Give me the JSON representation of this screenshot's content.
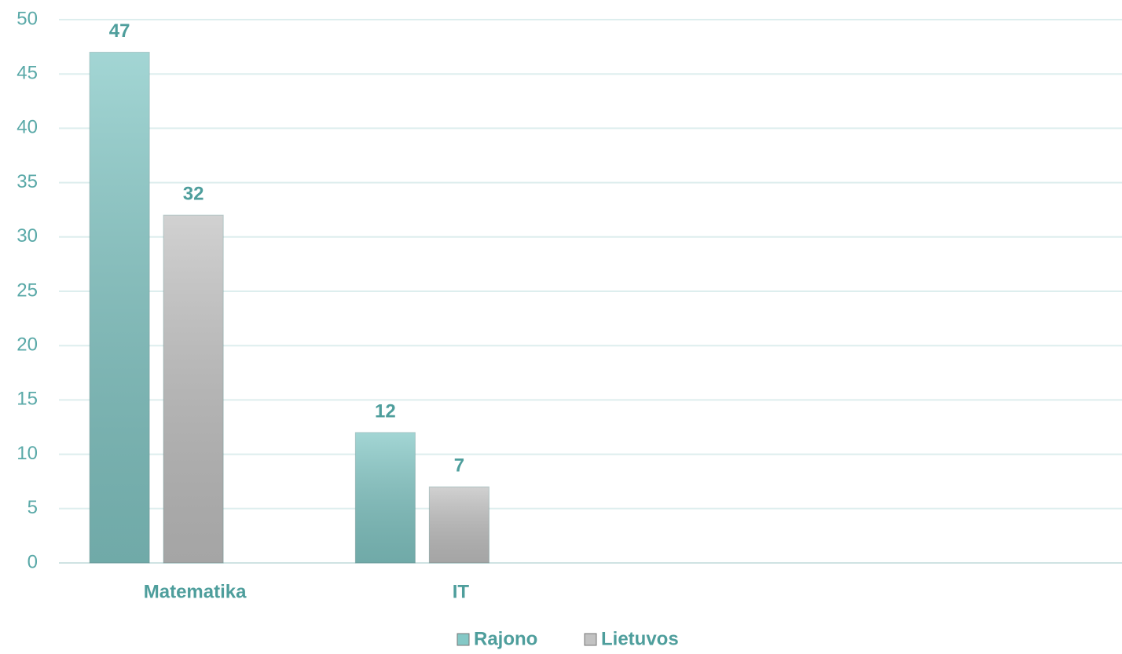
{
  "chart_data": {
    "type": "bar",
    "categories": [
      "Matematika",
      "IT",
      null,
      null
    ],
    "series": [
      {
        "name": "Rajono",
        "color": "#84c8c6",
        "values": [
          47,
          12,
          null,
          null
        ]
      },
      {
        "name": "Lietuvos",
        "color": "#c2c2c2",
        "values": [
          32,
          7,
          null,
          null
        ]
      }
    ],
    "ylim": [
      0,
      50
    ],
    "yticks": [
      0,
      5,
      10,
      15,
      20,
      25,
      30,
      35,
      40,
      45,
      50
    ],
    "grid": true,
    "legend": "bottom"
  }
}
